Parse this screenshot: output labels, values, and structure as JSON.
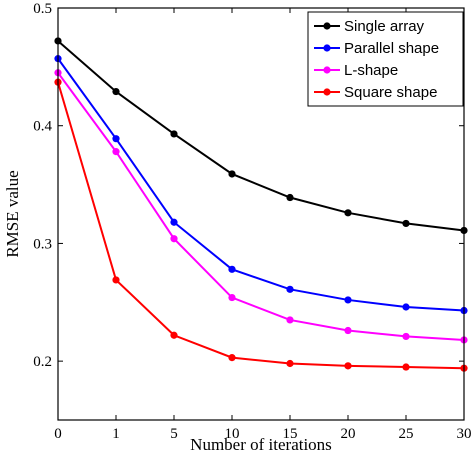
{
  "chart_data": {
    "type": "line",
    "title": "",
    "xlabel": "Number of iterations",
    "ylabel": "RMSE value",
    "categories": [
      "0",
      "1",
      "5",
      "10",
      "15",
      "20",
      "25",
      "30"
    ],
    "ylim": [
      0.15,
      0.5
    ],
    "yticks": [
      "0.2",
      "0.3",
      "0.4",
      "0.5"
    ],
    "grid": false,
    "legend_position": "top-right",
    "series": [
      {
        "name": "Single array",
        "color": "#000000",
        "values": [
          0.472,
          0.429,
          0.393,
          0.359,
          0.339,
          0.326,
          0.317,
          0.311
        ]
      },
      {
        "name": "Parallel shape",
        "color": "#0000ff",
        "values": [
          0.457,
          0.389,
          0.318,
          0.278,
          0.261,
          0.252,
          0.246,
          0.243
        ]
      },
      {
        "name": "L-shape",
        "color": "#ff00ff",
        "values": [
          0.445,
          0.378,
          0.304,
          0.254,
          0.235,
          0.226,
          0.221,
          0.218
        ]
      },
      {
        "name": "Square shape",
        "color": "#ff0000",
        "values": [
          0.437,
          0.269,
          0.222,
          0.203,
          0.198,
          0.196,
          0.195,
          0.194
        ]
      }
    ]
  }
}
